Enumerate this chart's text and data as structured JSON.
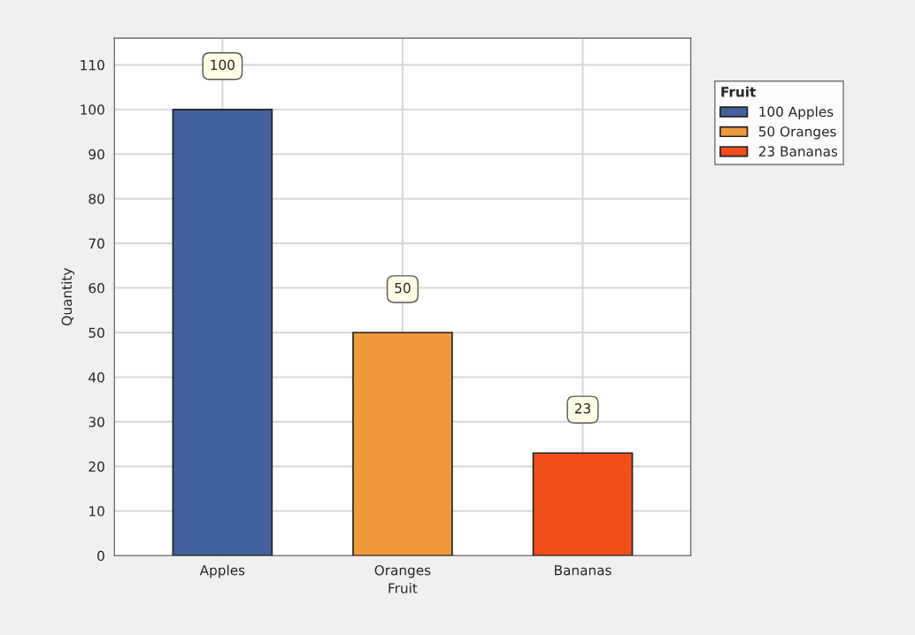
{
  "chart_data": {
    "type": "bar",
    "xlabel": "Fruit",
    "ylabel": "Quantity",
    "legend_title": "Fruit",
    "categories": [
      "Apples",
      "Oranges",
      "Bananas"
    ],
    "series": [
      {
        "name": "100 Apples",
        "color": "#41609e",
        "values": [
          100,
          null,
          null
        ]
      },
      {
        "name": "50 Oranges",
        "color": "#f0993a",
        "values": [
          null,
          50,
          null
        ]
      },
      {
        "name": "23 Bananas",
        "color": "#f04e1a",
        "values": [
          null,
          null,
          23
        ]
      }
    ],
    "ylim": [
      0,
      116
    ],
    "yticks": [
      0,
      10,
      20,
      30,
      40,
      50,
      60,
      70,
      80,
      90,
      100,
      110
    ],
    "grid": true,
    "legend": "right",
    "data_labels": true
  }
}
